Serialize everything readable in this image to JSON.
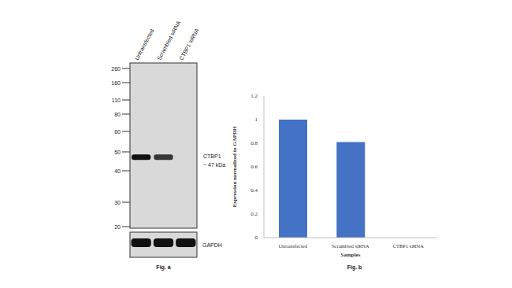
{
  "blot": {
    "lanes": [
      "Untransfected",
      "Scrambled siRNA",
      "CTBP1 siRNA"
    ],
    "markers": [
      260,
      160,
      110,
      80,
      60,
      50,
      40,
      30,
      20
    ],
    "target": "CTBP1",
    "target_size": "~ 47 kDa",
    "band_kda": 47,
    "loading_control": "GAPDH",
    "caption": "Fig. a"
  },
  "chart_data": {
    "type": "bar",
    "categories": [
      "Untransfected",
      "Scrambled siRNA",
      "CTBP1 siRNA"
    ],
    "values": [
      1,
      0.81,
      0
    ],
    "color": "#4472c4",
    "ylim": [
      0,
      1.2
    ],
    "yticks": [
      0,
      0.2,
      0.4,
      0.6,
      0.8,
      1,
      1.2
    ],
    "y_label": "Expression normalized to GAPDH",
    "x_label": "Samples",
    "caption": "Fig. b",
    "grid": false
  }
}
